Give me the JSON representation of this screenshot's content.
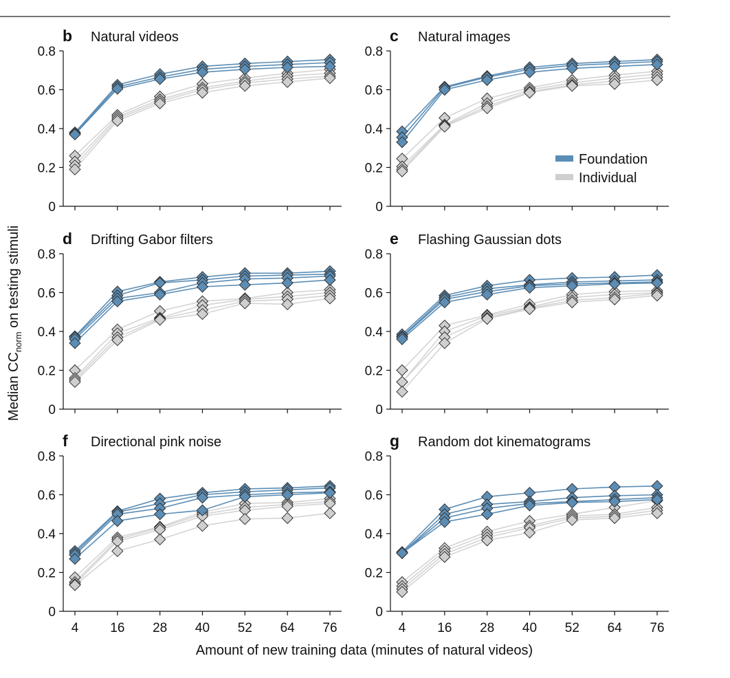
{
  "figure": {
    "xlabel": "Amount of new training data (minutes of natural videos)",
    "ylabel_main": "Median CC",
    "ylabel_sub": "norm",
    "ylabel_rest": " on testing stimuli",
    "colors": {
      "foundation": "#5b8db5",
      "individual": "#cfcfcf",
      "outline": "#333333"
    },
    "legend": {
      "foundation": "Foundation",
      "individual": "Individual",
      "placement": "inside panel c, right"
    }
  },
  "chart_data": [
    {
      "type": "line",
      "panel": "b",
      "title": "Natural videos",
      "x": [
        4,
        16,
        28,
        40,
        52,
        64,
        76
      ],
      "ylim": [
        0,
        0.8
      ],
      "yticks": [
        "0",
        "0.2",
        "0.4",
        "0.6",
        "0.8"
      ],
      "foundation": [
        [
          0.38,
          0.625,
          0.68,
          0.72,
          0.735,
          0.745,
          0.755
        ],
        [
          0.375,
          0.615,
          0.665,
          0.705,
          0.72,
          0.73,
          0.74
        ],
        [
          0.37,
          0.605,
          0.655,
          0.69,
          0.705,
          0.715,
          0.72
        ]
      ],
      "individual": [
        [
          0.26,
          0.47,
          0.565,
          0.63,
          0.66,
          0.685,
          0.705
        ],
        [
          0.23,
          0.46,
          0.55,
          0.61,
          0.645,
          0.67,
          0.685
        ],
        [
          0.21,
          0.45,
          0.54,
          0.6,
          0.635,
          0.655,
          0.67
        ],
        [
          0.19,
          0.44,
          0.53,
          0.585,
          0.62,
          0.64,
          0.66
        ]
      ]
    },
    {
      "type": "line",
      "panel": "c",
      "title": "Natural images",
      "x": [
        4,
        16,
        28,
        40,
        52,
        64,
        76
      ],
      "ylim": [
        0,
        0.8
      ],
      "yticks": [
        "0",
        "0.2",
        "0.4",
        "0.6",
        "0.8"
      ],
      "foundation": [
        [
          0.385,
          0.615,
          0.67,
          0.715,
          0.735,
          0.745,
          0.755
        ],
        [
          0.355,
          0.61,
          0.665,
          0.705,
          0.725,
          0.735,
          0.745
        ],
        [
          0.33,
          0.6,
          0.65,
          0.69,
          0.71,
          0.72,
          0.73
        ]
      ],
      "individual": [
        [
          0.245,
          0.455,
          0.555,
          0.61,
          0.65,
          0.675,
          0.695
        ],
        [
          0.205,
          0.42,
          0.53,
          0.6,
          0.635,
          0.66,
          0.68
        ],
        [
          0.19,
          0.415,
          0.515,
          0.59,
          0.625,
          0.645,
          0.665
        ],
        [
          0.18,
          0.41,
          0.505,
          0.585,
          0.62,
          0.63,
          0.65
        ]
      ]
    },
    {
      "type": "line",
      "panel": "d",
      "title": "Drifting Gabor filters",
      "x": [
        4,
        16,
        28,
        40,
        52,
        64,
        76
      ],
      "ylim": [
        0,
        0.8
      ],
      "yticks": [
        "0",
        "0.2",
        "0.4",
        "0.6",
        "0.8"
      ],
      "foundation": [
        [
          0.375,
          0.605,
          0.655,
          0.68,
          0.7,
          0.7,
          0.71
        ],
        [
          0.37,
          0.585,
          0.65,
          0.665,
          0.685,
          0.69,
          0.695
        ],
        [
          0.36,
          0.57,
          0.6,
          0.65,
          0.67,
          0.675,
          0.685
        ],
        [
          0.34,
          0.555,
          0.59,
          0.63,
          0.64,
          0.65,
          0.665
        ]
      ],
      "individual": [
        [
          0.2,
          0.41,
          0.505,
          0.555,
          0.57,
          0.6,
          0.615
        ],
        [
          0.16,
          0.39,
          0.47,
          0.535,
          0.565,
          0.58,
          0.6
        ],
        [
          0.15,
          0.37,
          0.465,
          0.51,
          0.555,
          0.565,
          0.585
        ],
        [
          0.14,
          0.355,
          0.46,
          0.49,
          0.545,
          0.54,
          0.57
        ]
      ]
    },
    {
      "type": "line",
      "panel": "e",
      "title": "Flashing Gaussian dots",
      "x": [
        4,
        16,
        28,
        40,
        52,
        64,
        76
      ],
      "ylim": [
        0,
        0.8
      ],
      "yticks": [
        "0",
        "0.2",
        "0.4",
        "0.6",
        "0.8"
      ],
      "foundation": [
        [
          0.385,
          0.585,
          0.635,
          0.665,
          0.675,
          0.68,
          0.69
        ],
        [
          0.375,
          0.575,
          0.62,
          0.64,
          0.655,
          0.66,
          0.665
        ],
        [
          0.37,
          0.565,
          0.605,
          0.635,
          0.645,
          0.65,
          0.655
        ],
        [
          0.36,
          0.55,
          0.59,
          0.625,
          0.635,
          0.645,
          0.65
        ]
      ],
      "individual": [
        [
          0.2,
          0.43,
          0.485,
          0.54,
          0.59,
          0.605,
          0.61
        ],
        [
          0.14,
          0.4,
          0.48,
          0.525,
          0.575,
          0.59,
          0.6
        ],
        [
          0.14,
          0.37,
          0.47,
          0.52,
          0.56,
          0.575,
          0.595
        ],
        [
          0.09,
          0.34,
          0.465,
          0.515,
          0.55,
          0.565,
          0.585
        ]
      ]
    },
    {
      "type": "line",
      "panel": "f",
      "title": "Directional pink noise",
      "x": [
        4,
        16,
        28,
        40,
        52,
        64,
        76
      ],
      "ylim": [
        0,
        0.8
      ],
      "yticks": [
        "0",
        "0.2",
        "0.4",
        "0.6",
        "0.8"
      ],
      "foundation": [
        [
          0.31,
          0.515,
          0.58,
          0.61,
          0.63,
          0.635,
          0.645
        ],
        [
          0.3,
          0.51,
          0.555,
          0.6,
          0.615,
          0.625,
          0.635
        ],
        [
          0.29,
          0.5,
          0.53,
          0.585,
          0.6,
          0.61,
          0.615
        ],
        [
          0.27,
          0.465,
          0.5,
          0.52,
          0.59,
          0.6,
          0.61
        ]
      ],
      "individual": [
        [
          0.175,
          0.38,
          0.435,
          0.51,
          0.555,
          0.56,
          0.58
        ],
        [
          0.15,
          0.37,
          0.43,
          0.5,
          0.535,
          0.55,
          0.565
        ],
        [
          0.14,
          0.36,
          0.42,
          0.49,
          0.52,
          0.54,
          0.555
        ],
        [
          0.135,
          0.31,
          0.37,
          0.44,
          0.475,
          0.48,
          0.505
        ]
      ]
    },
    {
      "type": "line",
      "panel": "g",
      "title": "Random dot kinematograms",
      "x": [
        4,
        16,
        28,
        40,
        52,
        64,
        76
      ],
      "ylim": [
        0,
        0.8
      ],
      "yticks": [
        "0",
        "0.2",
        "0.4",
        "0.6",
        "0.8"
      ],
      "foundation": [
        [
          0.305,
          0.525,
          0.59,
          0.61,
          0.63,
          0.64,
          0.645
        ],
        [
          0.3,
          0.5,
          0.55,
          0.565,
          0.585,
          0.595,
          0.6
        ],
        [
          0.3,
          0.48,
          0.53,
          0.555,
          0.565,
          0.575,
          0.585
        ],
        [
          0.3,
          0.46,
          0.5,
          0.545,
          0.56,
          0.565,
          0.575
        ]
      ],
      "individual": [
        [
          0.15,
          0.325,
          0.41,
          0.465,
          0.5,
          0.535,
          0.57
        ],
        [
          0.13,
          0.31,
          0.395,
          0.44,
          0.49,
          0.5,
          0.535
        ],
        [
          0.115,
          0.295,
          0.38,
          0.43,
          0.48,
          0.49,
          0.52
        ],
        [
          0.1,
          0.28,
          0.365,
          0.405,
          0.47,
          0.48,
          0.505
        ]
      ]
    }
  ]
}
